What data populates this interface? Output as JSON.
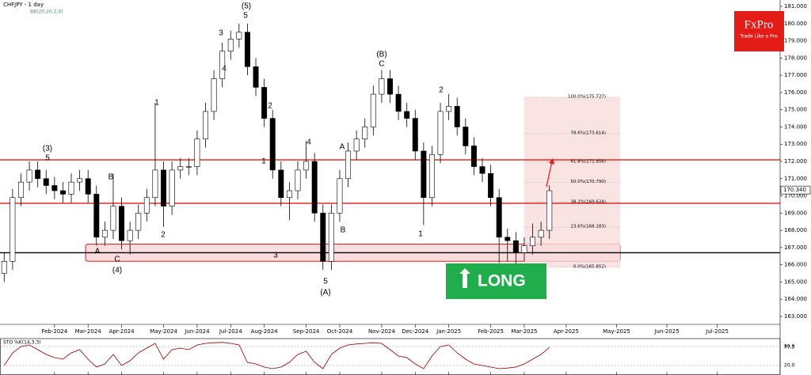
{
  "chart_data": {
    "type": "candlestick",
    "title": "CHFJPY - 1 day",
    "indicator": "BB(20,20,2,0)",
    "categories": [
      null,
      null,
      null,
      null,
      null,
      null,
      "Feb-2024",
      null,
      null,
      null,
      "Mar-2024",
      null,
      null,
      null,
      "Apr-2024",
      null,
      null,
      null,
      null,
      "May-2024",
      null,
      null,
      null,
      "Jun-2024",
      null,
      null,
      null,
      "Jul-2024",
      null,
      null,
      null,
      "Aug-2024",
      null,
      null,
      null,
      null,
      "Sep-2024",
      null,
      null,
      null,
      "Oct-2024",
      null,
      null,
      null,
      null,
      "Nov-2024",
      null,
      null,
      null,
      "Dec-2024",
      null,
      null,
      null,
      "Jan-2025",
      null,
      null,
      null,
      null,
      "Feb-2025",
      null,
      null,
      null,
      "Mar-2025",
      null,
      null,
      null,
      null,
      "Apr-2025",
      null,
      null,
      null,
      null,
      null,
      "May-2025",
      null,
      null,
      null,
      null,
      null,
      "Jun-2025",
      null,
      null,
      null,
      null,
      null,
      "Jul-2025",
      null,
      null,
      null,
      null,
      null,
      null,
      null
    ],
    "open": [
      165.5,
      166.2,
      169.9,
      170.8,
      171.5,
      171.0,
      170.6,
      170.3,
      170.1,
      170.8,
      171.0,
      170.1,
      167.6,
      168.0,
      169.4,
      167.4,
      168.0,
      169.0,
      169.9,
      171.5,
      169.4,
      171.5,
      171.7,
      171.7,
      173.3,
      174.9,
      176.8,
      178.4,
      179.1,
      179.5,
      177.5,
      176.3,
      174.5,
      171.5,
      169.9,
      170.3,
      171.5,
      172.0,
      169.0,
      166.2,
      169.0,
      171.0,
      172.6,
      173.3,
      174.0,
      175.9,
      176.8,
      175.9,
      174.9,
      174.5,
      172.6,
      169.9,
      172.4,
      174.9,
      175.2,
      174.0,
      172.9,
      171.7,
      171.3,
      169.9,
      167.6,
      167.4,
      166.7,
      167.1,
      167.6,
      168.0,
      null,
      null,
      null,
      null,
      null,
      null,
      null,
      null,
      null,
      null,
      null,
      null,
      null,
      null,
      null,
      null,
      null,
      null,
      null,
      null,
      null,
      null,
      null,
      null,
      null,
      null,
      null
    ],
    "high": [
      166.7,
      170.4,
      171.3,
      172.0,
      172.0,
      171.5,
      171.1,
      170.8,
      171.3,
      171.5,
      171.5,
      170.6,
      168.5,
      171.3,
      169.9,
      168.5,
      169.5,
      170.4,
      175.4,
      172.0,
      172.0,
      172.2,
      172.2,
      173.8,
      175.4,
      177.3,
      178.9,
      179.6,
      180.0,
      180.0,
      178.0,
      176.8,
      175.0,
      172.0,
      170.8,
      172.0,
      173.2,
      172.5,
      169.5,
      169.5,
      171.5,
      173.1,
      173.8,
      174.5,
      176.4,
      177.3,
      177.3,
      176.4,
      175.4,
      175.0,
      173.1,
      172.9,
      175.4,
      175.9,
      175.7,
      174.5,
      173.4,
      172.2,
      171.8,
      170.4,
      168.1,
      167.9,
      167.6,
      168.4,
      168.5,
      170.6,
      null,
      null,
      null,
      null,
      null,
      null,
      null,
      null,
      null,
      null,
      null,
      null,
      null,
      null,
      null,
      null,
      null,
      null,
      null,
      null,
      null,
      null,
      null,
      null,
      null,
      null,
      null
    ],
    "low": [
      165.0,
      165.7,
      169.4,
      170.3,
      170.5,
      170.1,
      169.8,
      169.6,
      169.6,
      170.3,
      169.6,
      167.1,
      167.1,
      167.5,
      166.9,
      166.6,
      167.5,
      168.5,
      169.4,
      168.2,
      168.9,
      171.0,
      171.2,
      171.2,
      172.8,
      174.4,
      176.3,
      177.9,
      178.6,
      177.0,
      175.8,
      174.0,
      171.0,
      169.4,
      168.6,
      169.8,
      171.0,
      168.5,
      165.7,
      165.7,
      168.5,
      170.5,
      172.1,
      172.8,
      173.5,
      175.4,
      175.4,
      174.4,
      174.0,
      172.1,
      168.3,
      169.4,
      171.9,
      174.4,
      173.5,
      172.4,
      171.2,
      170.8,
      169.4,
      166.1,
      166.2,
      166.0,
      166.2,
      166.6,
      167.1,
      167.5,
      null,
      null,
      null,
      null,
      null,
      null,
      null,
      null,
      null,
      null,
      null,
      null,
      null,
      null,
      null,
      null,
      null,
      null,
      null,
      null,
      null,
      null,
      null,
      null,
      null,
      null,
      null
    ],
    "close": [
      166.2,
      169.9,
      170.8,
      171.5,
      171.0,
      170.6,
      170.3,
      170.1,
      170.8,
      171.0,
      170.1,
      167.6,
      168.0,
      169.4,
      167.4,
      168.0,
      169.0,
      169.9,
      171.5,
      169.4,
      171.5,
      171.7,
      171.7,
      173.3,
      174.9,
      176.8,
      178.4,
      179.1,
      179.5,
      177.5,
      176.3,
      174.5,
      171.5,
      169.9,
      170.3,
      171.5,
      172.0,
      169.0,
      166.2,
      169.0,
      171.0,
      172.6,
      173.3,
      174.0,
      175.9,
      176.8,
      175.9,
      174.9,
      174.5,
      172.6,
      169.9,
      172.4,
      174.9,
      175.2,
      174.0,
      172.9,
      171.7,
      171.3,
      169.9,
      167.6,
      167.4,
      166.7,
      167.1,
      167.6,
      168.0,
      170.3,
      null,
      null,
      null,
      null,
      null,
      null,
      null,
      null,
      null,
      null,
      null,
      null,
      null,
      null,
      null,
      null,
      null,
      null,
      null,
      null,
      null,
      null,
      null,
      null,
      null,
      null,
      null
    ],
    "ylim": [
      162.54,
      181.37
    ],
    "yticks": [
      {
        "value": 163,
        "label": "163.000"
      },
      {
        "value": 164,
        "label": "164.000"
      },
      {
        "value": 165,
        "label": "165.000"
      },
      {
        "value": 166,
        "label": "166.000"
      },
      {
        "value": 167,
        "label": "167.000"
      },
      {
        "value": 168,
        "label": "168.000"
      },
      {
        "value": 169,
        "label": "169.000"
      },
      {
        "value": 170,
        "label": "170.000"
      },
      {
        "value": 171,
        "label": "171.000"
      },
      {
        "value": 172,
        "label": "172.000"
      },
      {
        "value": 173,
        "label": "173.000"
      },
      {
        "value": 174,
        "label": "174.000"
      },
      {
        "value": 175,
        "label": "175.000"
      },
      {
        "value": 176,
        "label": "176.000"
      },
      {
        "value": 177,
        "label": "177.000"
      },
      {
        "value": 178,
        "label": "178.000"
      },
      {
        "value": 179,
        "label": "179.000"
      },
      {
        "value": 180,
        "label": "180.000"
      },
      {
        "value": 181,
        "label": "181.000"
      }
    ],
    "last_price": {
      "value": 170.34,
      "label": "170.340"
    },
    "levels": [
      {
        "value": 172.09,
        "color": "#e41b17"
      },
      {
        "value": 169.57,
        "color": "#e41b17"
      },
      {
        "value": 166.7,
        "color": "#000000"
      }
    ],
    "support_zone": [
      166.2,
      167.2
    ],
    "fib_levels": [
      {
        "value": 175.727,
        "label": "100.0%(175.727)"
      },
      {
        "value": 173.614,
        "label": "78.6%(173.614)"
      },
      {
        "value": 171.956,
        "label": "61.8%(171.956)"
      },
      {
        "value": 170.79,
        "label": "50.0%(170.790)"
      },
      {
        "value": 169.624,
        "label": "38.2%(169.624)"
      },
      {
        "value": 168.183,
        "label": "23.6%(168.183)"
      },
      {
        "value": 165.852,
        "label": "0.0%(165.852)"
      }
    ],
    "annotations": [
      "(3)",
      "5",
      "A",
      "B",
      "C",
      "(4)",
      "1",
      "2",
      "3",
      "4",
      "(5)",
      "5",
      "1",
      "2",
      "3",
      "4",
      "5",
      "(A)",
      "A",
      "B",
      "(B)",
      "C",
      "1",
      "2"
    ],
    "signal": "LONG",
    "colors": {
      "up": "#ffffff",
      "down": "#000000",
      "zone": "#f6c7c9",
      "fib_box": "#f9dcdc",
      "signal": "#1fae4b"
    },
    "stochastic": {
      "label": "STO %K(14,3,3)",
      "values": [
        20,
        60,
        80,
        85,
        70,
        55,
        45,
        40,
        60,
        70,
        40,
        15,
        25,
        55,
        20,
        35,
        60,
        75,
        90,
        40,
        70,
        75,
        70,
        85,
        90,
        92,
        93,
        90,
        85,
        30,
        25,
        15,
        10,
        15,
        30,
        55,
        65,
        30,
        10,
        55,
        75,
        85,
        88,
        90,
        92,
        90,
        70,
        50,
        45,
        25,
        10,
        50,
        80,
        85,
        60,
        40,
        25,
        20,
        15,
        10,
        12,
        15,
        25,
        40,
        55,
        77.3,
        null,
        null,
        null,
        null,
        null,
        null,
        null,
        null,
        null,
        null,
        null,
        null,
        null,
        null,
        null,
        null,
        null,
        null,
        null,
        null,
        null,
        null,
        null,
        null,
        null,
        null,
        null
      ],
      "ylim": [
        0,
        100
      ],
      "yticks": [
        {
          "value": 80,
          "label": "80.0"
        },
        {
          "value": 20,
          "label": "20.0"
        }
      ],
      "color": "#8b0000"
    }
  },
  "logo": {
    "name": "FxPro",
    "tagline": "Trade Like a Pro"
  }
}
